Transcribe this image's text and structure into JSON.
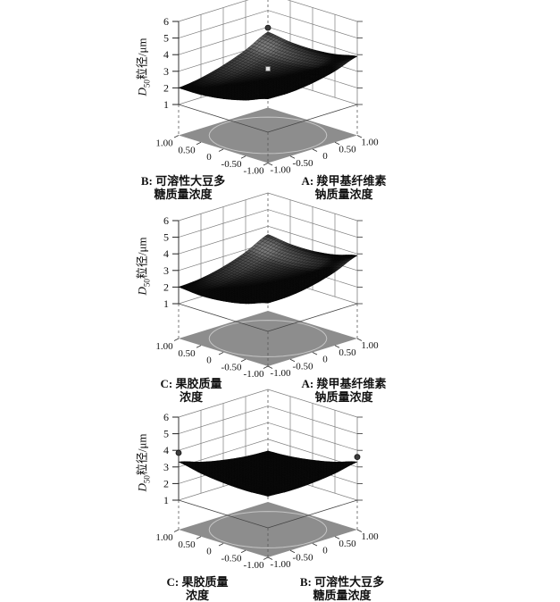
{
  "colors": {
    "background": "#ffffff",
    "floor": "#8d8d8d",
    "grid": "#7d7d7d",
    "contour": "#c5c5c5",
    "axis": "#333333",
    "text": "#111111",
    "surface_dark": "#0a0a0a",
    "surface_light": "#b4b4b4"
  },
  "chart_data": [
    {
      "type": "surface3d",
      "z_axis": {
        "label": "D50粒径/μm",
        "label_d": "D",
        "label_sub": "50",
        "label_rest": "粒径/μm",
        "ticks": [
          "1",
          "2",
          "3",
          "4",
          "5",
          "6"
        ],
        "range": [
          1,
          6
        ]
      },
      "left_axis": {
        "letter": "B",
        "label": "B: 可溶性大豆多糖质量浓度",
        "label_lines": [
          "B: 可溶性大豆多",
          "糖质量浓度"
        ],
        "ticks": [
          "1.00",
          "0.50",
          "0",
          "-0.50",
          "-1.00"
        ],
        "range": [
          -1,
          1
        ]
      },
      "right_axis": {
        "letter": "A",
        "label": "A: 羧甲基纤维素钠质量浓度",
        "label_lines": [
          "A: 羧甲基纤维素",
          "钠质量浓度"
        ],
        "ticks": [
          "-1.00",
          "-0.50",
          "0",
          "0.50",
          "1.00"
        ],
        "range": [
          -1,
          1
        ]
      },
      "u_values": [
        -1,
        -0.5,
        0,
        0.5,
        1
      ],
      "v_values": [
        -1,
        -0.5,
        0,
        0.5,
        1
      ],
      "z_grid": [
        [
          3.0,
          2.98,
          3.13,
          3.43,
          3.9
        ],
        [
          2.51,
          2.54,
          2.73,
          3.09,
          3.61
        ],
        [
          2.18,
          2.26,
          2.5,
          2.91,
          3.48
        ],
        [
          2.01,
          2.14,
          2.43,
          2.89,
          3.51
        ],
        [
          2.0,
          2.18,
          2.53,
          3.03,
          3.7
        ]
      ],
      "design_points": [
        {
          "u": 1,
          "v": 1,
          "z": 3.95,
          "marker": "dot"
        },
        {
          "u": 0,
          "v": 0,
          "z": 3.15,
          "marker": "square"
        }
      ]
    },
    {
      "type": "surface3d",
      "z_axis": {
        "label": "D50粒径/μm",
        "label_d": "D",
        "label_sub": "50",
        "label_rest": "粒径/μm",
        "ticks": [
          "1",
          "2",
          "3",
          "4",
          "5",
          "6"
        ],
        "range": [
          1,
          6
        ]
      },
      "left_axis": {
        "letter": "C",
        "label": "C: 果胶质量浓度",
        "label_lines": [
          "C: 果胶质量",
          "浓度"
        ],
        "ticks": [
          "1.00",
          "0.50",
          "0",
          "-0.50",
          "-1.00"
        ],
        "range": [
          -1,
          1
        ]
      },
      "right_axis": {
        "letter": "A",
        "label": "A: 羧甲基纤维素钠质量浓度",
        "label_lines": [
          "A: 羧甲基纤维素",
          "钠质量浓度"
        ],
        "ticks": [
          "-1.00",
          "-0.50",
          "0",
          "0.50",
          "1.00"
        ],
        "range": [
          -1,
          1
        ]
      },
      "u_values": [
        -1,
        -0.5,
        0,
        0.5,
        1
      ],
      "v_values": [
        -1,
        -0.5,
        0,
        0.5,
        1
      ],
      "z_grid": [
        [
          2.7,
          2.73,
          2.94,
          3.33,
          3.9
        ],
        [
          2.25,
          2.3,
          2.53,
          2.94,
          3.53
        ],
        [
          1.99,
          2.05,
          2.3,
          2.73,
          3.34
        ],
        [
          1.9,
          1.99,
          2.25,
          2.7,
          3.33
        ],
        [
          2.0,
          2.1,
          2.39,
          2.85,
          3.5
        ]
      ],
      "design_points": []
    },
    {
      "type": "surface3d",
      "z_axis": {
        "label": "D50粒径/μm",
        "label_d": "D",
        "label_sub": "50",
        "label_rest": "粒径/μm",
        "ticks": [
          "1",
          "2",
          "3",
          "4",
          "5",
          "6"
        ],
        "range": [
          1,
          6
        ]
      },
      "left_axis": {
        "letter": "C",
        "label": "C: 果胶质量浓度",
        "label_lines": [
          "C: 果胶质量",
          "浓度"
        ],
        "ticks": [
          "1.00",
          "0.50",
          "0",
          "-0.50",
          "-1.00"
        ],
        "range": [
          -1,
          1
        ]
      },
      "right_axis": {
        "letter": "B",
        "label": "B: 可溶性大豆多糖质量浓度",
        "label_lines": [
          "B: 可溶性大豆多",
          "糖质量浓度"
        ],
        "ticks": [
          "-1.00",
          "-0.50",
          "0",
          "0.50",
          "1.00"
        ],
        "range": [
          -1,
          1
        ]
      },
      "u_values": [
        -1,
        -0.5,
        0,
        0.5,
        1
      ],
      "v_values": [
        -1,
        -0.5,
        0,
        0.5,
        1
      ],
      "z_grid": [
        [
          2.9,
          2.83,
          2.88,
          3.03,
          3.3
        ],
        [
          2.83,
          2.67,
          2.63,
          2.67,
          2.88
        ],
        [
          2.88,
          2.63,
          2.5,
          2.43,
          2.58
        ],
        [
          3.03,
          2.7,
          2.48,
          2.37,
          2.38
        ],
        [
          3.3,
          2.88,
          2.58,
          2.38,
          2.3
        ]
      ],
      "design_points": [
        {
          "u": -1,
          "v": 1,
          "z": 3.85,
          "marker": "dot"
        },
        {
          "u": 1,
          "v": -1,
          "z": 3.6,
          "marker": "dot"
        }
      ]
    }
  ]
}
